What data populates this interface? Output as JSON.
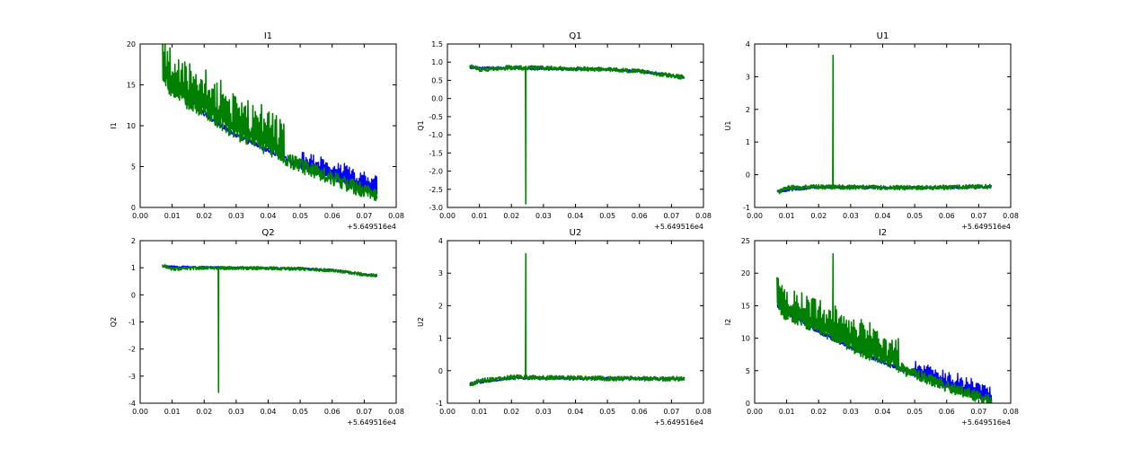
{
  "figure": {
    "colors": {
      "series_a": "#0000ff",
      "series_b": "#008000",
      "axes": "#000000",
      "background": "#ffffff"
    }
  },
  "chart_data": [
    {
      "type": "line",
      "title": "I1",
      "ylabel": "I1",
      "xlabel": "",
      "xlim": [
        0.0,
        0.08
      ],
      "ylim": [
        0,
        20
      ],
      "xticks": [
        "0.00",
        "0.01",
        "0.02",
        "0.03",
        "0.04",
        "0.05",
        "0.06",
        "0.07",
        "0.08"
      ],
      "yticks": [
        0,
        5,
        10,
        15,
        20
      ],
      "ytick_labels": [
        "0",
        "5",
        "10",
        "15",
        "20"
      ],
      "x_offset_label": "+5.649516e4",
      "series": [
        {
          "name": "blue",
          "trend": [
            [
              0.007,
              17
            ],
            [
              0.02,
              11.5
            ],
            [
              0.03,
              8.8
            ],
            [
              0.04,
              7
            ],
            [
              0.05,
              5
            ],
            [
              0.06,
              3.6
            ],
            [
              0.07,
              2.1
            ],
            [
              0.074,
              1.7
            ]
          ],
          "noise": 0.3,
          "spikes": {
            "from": 0.05,
            "to": 0.074,
            "height": 1.8,
            "step": 0.0015
          }
        },
        {
          "name": "green",
          "trend": [
            [
              0.007,
              16.5
            ],
            [
              0.01,
              14
            ],
            [
              0.02,
              11.8
            ],
            [
              0.03,
              9
            ],
            [
              0.04,
              7.2
            ],
            [
              0.05,
              5.1
            ],
            [
              0.06,
              3.6
            ],
            [
              0.07,
              2.0
            ],
            [
              0.074,
              1.7
            ]
          ],
          "noise": 0.9,
          "spikes": {
            "from": 0.007,
            "to": 0.045,
            "height": 4,
            "step": 0.0012
          }
        }
      ]
    },
    {
      "type": "line",
      "title": "Q1",
      "ylabel": "Q1",
      "xlabel": "",
      "xlim": [
        0.0,
        0.08
      ],
      "ylim": [
        -3.0,
        1.5
      ],
      "xticks": [
        "0.00",
        "0.01",
        "0.02",
        "0.03",
        "0.04",
        "0.05",
        "0.06",
        "0.07",
        "0.08"
      ],
      "yticks": [
        -3.0,
        -2.5,
        -2.0,
        -1.5,
        -1.0,
        -0.5,
        0.0,
        0.5,
        1.0,
        1.5
      ],
      "ytick_labels": [
        "-3.0",
        "-2.5",
        "-2.0",
        "-1.5",
        "-1.0",
        "-0.5",
        "0.0",
        "0.5",
        "1.0",
        "1.5"
      ],
      "x_offset_label": "+5.649516e4",
      "series": [
        {
          "name": "blue",
          "trend": [
            [
              0.007,
              0.85
            ],
            [
              0.03,
              0.82
            ],
            [
              0.05,
              0.8
            ],
            [
              0.06,
              0.75
            ],
            [
              0.07,
              0.63
            ],
            [
              0.074,
              0.58
            ]
          ],
          "noise": 0.03
        },
        {
          "name": "green",
          "trend": [
            [
              0.007,
              0.9
            ],
            [
              0.01,
              0.8
            ],
            [
              0.02,
              0.85
            ],
            [
              0.04,
              0.82
            ],
            [
              0.05,
              0.8
            ],
            [
              0.06,
              0.75
            ],
            [
              0.07,
              0.63
            ],
            [
              0.074,
              0.58
            ]
          ],
          "noise": 0.06,
          "feature": {
            "x": 0.0245,
            "y": -2.9
          }
        }
      ]
    },
    {
      "type": "line",
      "title": "U1",
      "ylabel": "U1",
      "xlabel": "",
      "xlim": [
        0.0,
        0.08
      ],
      "ylim": [
        -1,
        4
      ],
      "xticks": [
        "0.00",
        "0.01",
        "0.02",
        "0.03",
        "0.04",
        "0.05",
        "0.06",
        "0.07",
        "0.08"
      ],
      "yticks": [
        -1,
        0,
        1,
        2,
        3,
        4
      ],
      "ytick_labels": [
        "-1",
        "0",
        "1",
        "2",
        "3",
        "4"
      ],
      "x_offset_label": "+5.649516e4",
      "series": [
        {
          "name": "blue",
          "trend": [
            [
              0.007,
              -0.5
            ],
            [
              0.02,
              -0.38
            ],
            [
              0.05,
              -0.4
            ],
            [
              0.074,
              -0.37
            ]
          ],
          "noise": 0.04
        },
        {
          "name": "green",
          "trend": [
            [
              0.007,
              -0.55
            ],
            [
              0.01,
              -0.4
            ],
            [
              0.02,
              -0.37
            ],
            [
              0.05,
              -0.4
            ],
            [
              0.074,
              -0.36
            ]
          ],
          "noise": 0.07,
          "feature": {
            "x": 0.0245,
            "y": 3.65
          }
        }
      ]
    },
    {
      "type": "line",
      "title": "Q2",
      "ylabel": "Q2",
      "xlabel": "",
      "xlim": [
        0.0,
        0.08
      ],
      "ylim": [
        -4,
        2
      ],
      "xticks": [
        "0.00",
        "0.01",
        "0.02",
        "0.03",
        "0.04",
        "0.05",
        "0.06",
        "0.07",
        "0.08"
      ],
      "yticks": [
        -4,
        -3,
        -2,
        -1,
        0,
        1,
        2
      ],
      "ytick_labels": [
        "-4",
        "-3",
        "-2",
        "-1",
        "0",
        "1",
        "2"
      ],
      "x_offset_label": "+5.649516e4",
      "series": [
        {
          "name": "blue",
          "trend": [
            [
              0.007,
              1.05
            ],
            [
              0.03,
              1.0
            ],
            [
              0.05,
              0.97
            ],
            [
              0.06,
              0.92
            ],
            [
              0.07,
              0.75
            ],
            [
              0.074,
              0.7
            ]
          ],
          "noise": 0.03
        },
        {
          "name": "green",
          "trend": [
            [
              0.007,
              1.1
            ],
            [
              0.01,
              0.95
            ],
            [
              0.02,
              1.0
            ],
            [
              0.04,
              0.98
            ],
            [
              0.05,
              0.96
            ],
            [
              0.06,
              0.9
            ],
            [
              0.07,
              0.75
            ],
            [
              0.074,
              0.7
            ]
          ],
          "noise": 0.06,
          "feature": {
            "x": 0.0245,
            "y": -3.6
          }
        }
      ]
    },
    {
      "type": "line",
      "title": "U2",
      "ylabel": "U2",
      "xlabel": "",
      "xlim": [
        0.0,
        0.08
      ],
      "ylim": [
        -1,
        4
      ],
      "xticks": [
        "0.00",
        "0.01",
        "0.02",
        "0.03",
        "0.04",
        "0.05",
        "0.06",
        "0.07",
        "0.08"
      ],
      "yticks": [
        -1,
        0,
        1,
        2,
        3,
        4
      ],
      "ytick_labels": [
        "-1",
        "0",
        "1",
        "2",
        "3",
        "4"
      ],
      "x_offset_label": "+5.649516e4",
      "series": [
        {
          "name": "blue",
          "trend": [
            [
              0.007,
              -0.4
            ],
            [
              0.02,
              -0.22
            ],
            [
              0.05,
              -0.24
            ],
            [
              0.074,
              -0.25
            ]
          ],
          "noise": 0.04
        },
        {
          "name": "green",
          "trend": [
            [
              0.007,
              -0.45
            ],
            [
              0.01,
              -0.3
            ],
            [
              0.02,
              -0.2
            ],
            [
              0.05,
              -0.24
            ],
            [
              0.074,
              -0.25
            ]
          ],
          "noise": 0.07,
          "feature": {
            "x": 0.0245,
            "y": 3.6
          }
        }
      ]
    },
    {
      "type": "line",
      "title": "I2",
      "ylabel": "I2",
      "xlabel": "",
      "xlim": [
        0.0,
        0.08
      ],
      "ylim": [
        0,
        25
      ],
      "xticks": [
        "0.00",
        "0.01",
        "0.02",
        "0.03",
        "0.04",
        "0.05",
        "0.06",
        "0.07",
        "0.08"
      ],
      "yticks": [
        0,
        5,
        10,
        15,
        20,
        25
      ],
      "ytick_labels": [
        "0",
        "5",
        "10",
        "15",
        "20",
        "25"
      ],
      "x_offset_label": "+5.649516e4",
      "series": [
        {
          "name": "blue",
          "trend": [
            [
              0.007,
              15
            ],
            [
              0.02,
              11
            ],
            [
              0.03,
              8.5
            ],
            [
              0.04,
              6.3
            ],
            [
              0.05,
              4.4
            ],
            [
              0.06,
              2.6
            ],
            [
              0.07,
              1.0
            ],
            [
              0.074,
              0.3
            ]
          ],
          "noise": 0.3,
          "spikes": {
            "from": 0.05,
            "to": 0.074,
            "height": 1.9,
            "step": 0.0015
          }
        },
        {
          "name": "green",
          "trend": [
            [
              0.007,
              15
            ],
            [
              0.01,
              13.5
            ],
            [
              0.02,
              11.5
            ],
            [
              0.03,
              8.8
            ],
            [
              0.04,
              6.5
            ],
            [
              0.05,
              4.5
            ],
            [
              0.06,
              2.6
            ],
            [
              0.07,
              1.0
            ],
            [
              0.074,
              0.3
            ]
          ],
          "noise": 0.9,
          "spikes": {
            "from": 0.007,
            "to": 0.045,
            "height": 4,
            "step": 0.0012
          },
          "feature": {
            "x": 0.0245,
            "y": 23
          }
        }
      ]
    }
  ]
}
